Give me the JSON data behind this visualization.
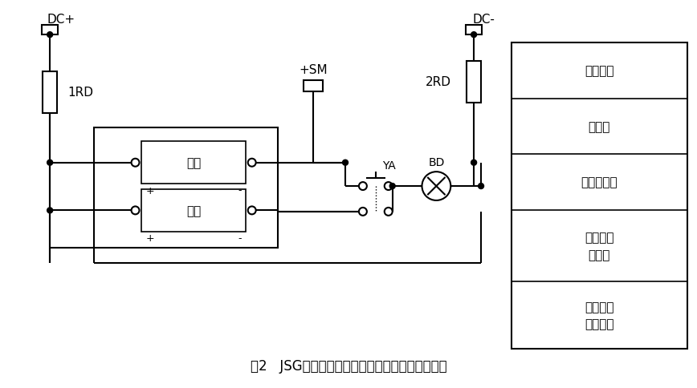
{
  "title": "图2   JSG系列静态闪光继电器应用外部接线参考图",
  "bg_color": "#ffffff",
  "legend_rows": [
    "直流母线",
    "熔断器",
    "闪光小母线",
    "静态闪光\n断电器",
    "试验按钮\n及信号灯"
  ],
  "dc_plus": "DC+",
  "dc_minus": "DC-",
  "rd1": "1RD",
  "rd2": "2RD",
  "sm": "+SM",
  "ya": "YA",
  "bd": "BD",
  "start": "启动",
  "power": "电源"
}
